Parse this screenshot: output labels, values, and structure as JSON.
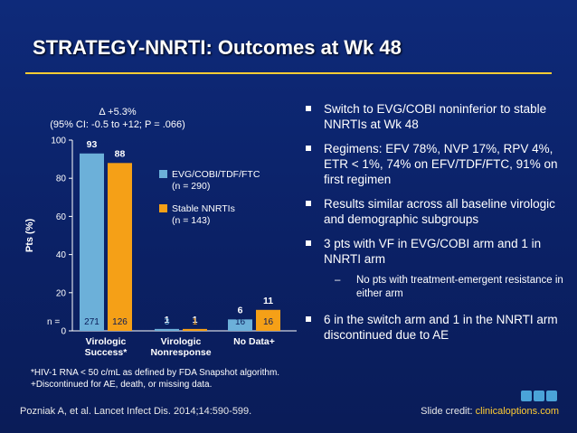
{
  "slide": {
    "title": "STRATEGY-NNRTI: Outcomes at Wk 48",
    "bullets": [
      "Switch to EVG/COBI noninferior to stable NNRTIs at Wk 48",
      "Regimens: EFV 78%, NVP 17%, RPV 4%, ETR < 1%, 74% on EFV/TDF/FTC, 91% on first regimen",
      "Results similar across all baseline virologic and demographic subgroups",
      "3 pts with VF in EVG/COBI arm and 1 in NNRTI arm",
      "6 in the switch arm and 1 in the NNRTI arm discontinued due to AE"
    ],
    "subbullet": "No pts with treatment-emergent resistance in either arm",
    "footnotes": [
      "*HIV-1 RNA < 50 c/mL as defined by FDA Snapshot algorithm.",
      "+Discontinued for AE, death, or missing data."
    ],
    "citation": "Pozniak A, et al. Lancet Infect Dis. 2014;14:590-599.",
    "credit_label": "Slide credit: ",
    "credit_link": "clinicaloptions.com"
  },
  "chart_data": {
    "type": "bar",
    "ylabel": "Pts (%)",
    "ylim": [
      0,
      100
    ],
    "yticks": [
      0,
      20,
      40,
      60,
      80,
      100
    ],
    "annotation": [
      "Δ +5.3%",
      "(95% CI: -0.5 to +12; P = .066)"
    ],
    "n_label": "n =",
    "categories": [
      [
        "Virologic",
        "Success*"
      ],
      [
        "Virologic",
        "Nonresponse"
      ],
      [
        "No Data+"
      ]
    ],
    "series": [
      {
        "name": "EVG/COBI/TDF/FTC",
        "name_n": "(n = 290)",
        "color": "#6cb0d9",
        "values": [
          93,
          1,
          6
        ],
        "n": [
          271,
          3,
          16
        ]
      },
      {
        "name": "Stable NNRTIs",
        "name_n": "(n = 143)",
        "color": "#f5a017",
        "values": [
          88,
          1,
          11
        ],
        "n": [
          126,
          1,
          16
        ]
      }
    ],
    "legend": "right"
  }
}
